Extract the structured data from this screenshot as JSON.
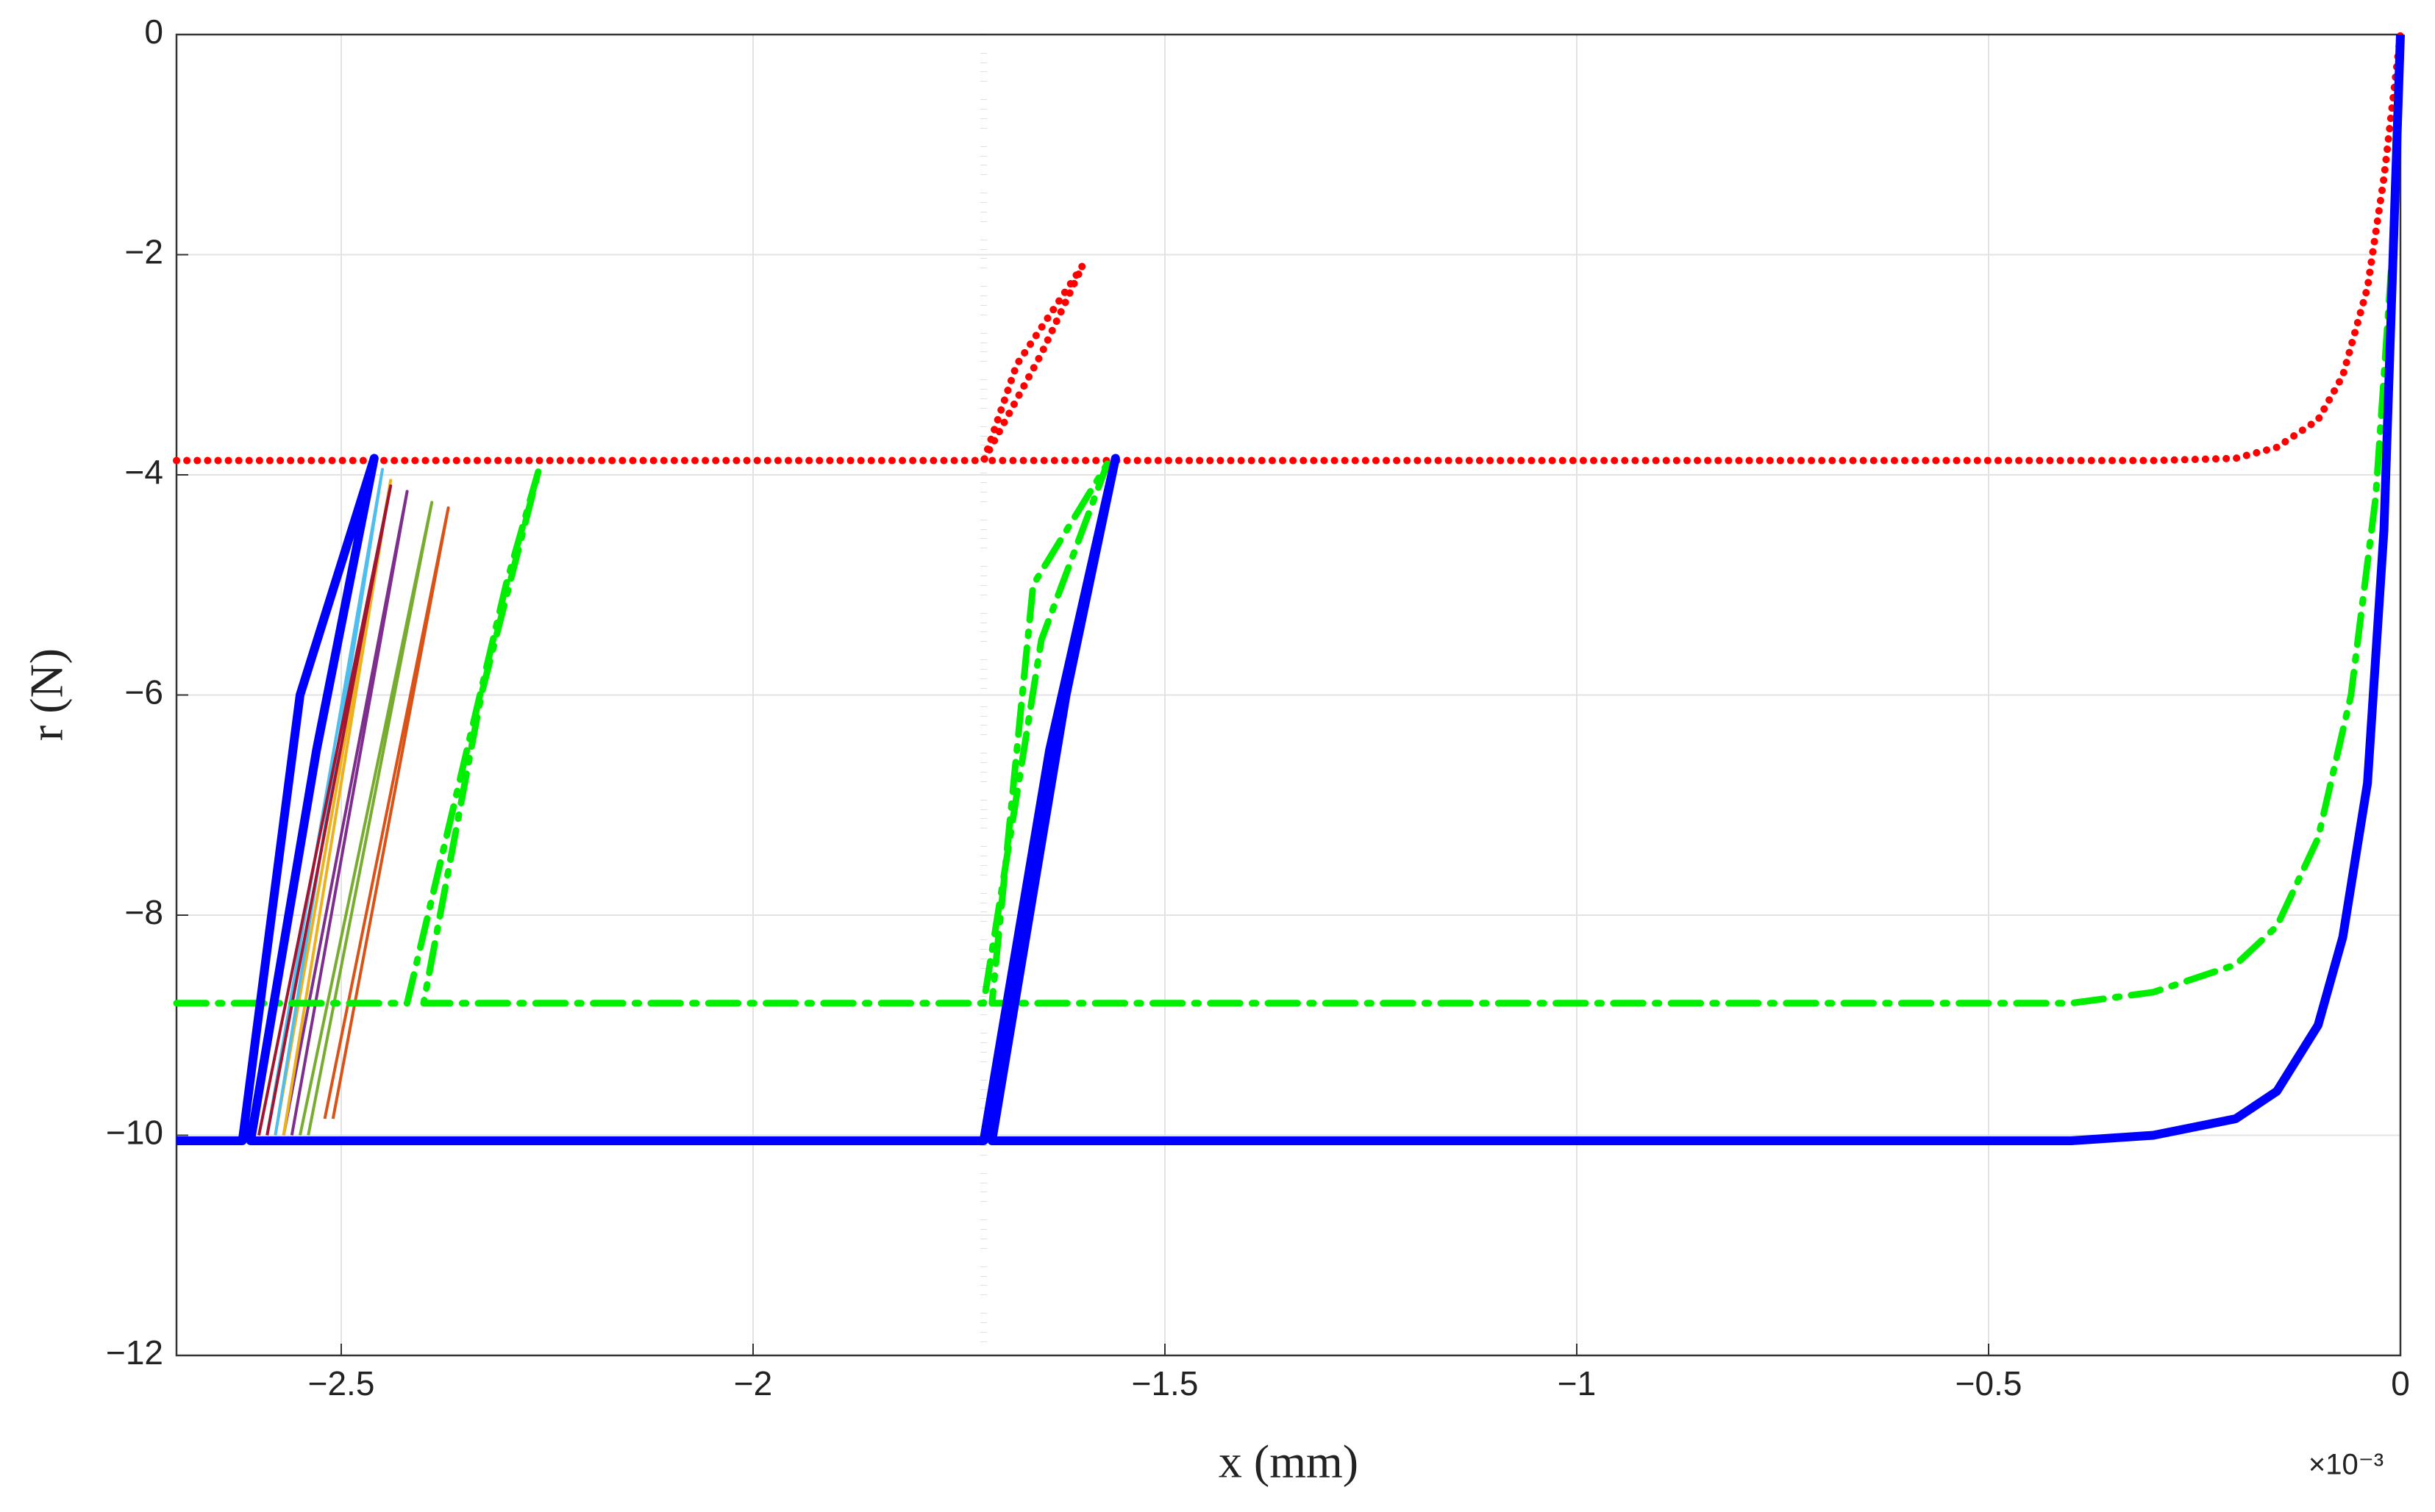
{
  "chart_data": {
    "type": "line",
    "xlabel": "x (mm)",
    "ylabel": "r (N)",
    "x_multiplier": "×10⁻³",
    "xlim": [
      -2.7,
      0
    ],
    "ylim": [
      -12,
      0
    ],
    "xticks": [
      {
        "value": -2.5,
        "label": "−2.5"
      },
      {
        "value": -2,
        "label": "−2"
      },
      {
        "value": -1.5,
        "label": "−1.5"
      },
      {
        "value": -1,
        "label": "−1"
      },
      {
        "value": -0.5,
        "label": "−0.5"
      },
      0
    ],
    "yticks": [
      {
        "value": -12,
        "label": "−12"
      },
      {
        "value": -10,
        "label": "−10"
      },
      {
        "value": -8,
        "label": "−8"
      },
      {
        "value": -6,
        "label": "−6"
      },
      {
        "value": -4,
        "label": "−4"
      },
      {
        "value": -2,
        "label": "−2"
      },
      0
    ],
    "grid": true,
    "vline": {
      "x": -1.72,
      "color": "#000000",
      "style": "dotted"
    },
    "series": [
      {
        "color": "#d95319",
        "style": "solid",
        "width": 4,
        "x": [
          -2.52,
          -2.37,
          -2.51
        ],
        "values": [
          -9.85,
          -4.3,
          -9.85
        ]
      },
      {
        "color": "#77ac30",
        "style": "solid",
        "width": 4,
        "x": [
          -2.55,
          -2.39,
          -2.54
        ],
        "values": [
          -10,
          -4.25,
          -10
        ]
      },
      {
        "color": "#7e2f8e",
        "style": "solid",
        "width": 4,
        "x": [
          -2.57,
          -2.42,
          -2.56
        ],
        "values": [
          -10,
          -4.15,
          -10
        ]
      },
      {
        "color": "#edb120",
        "style": "solid",
        "width": 4,
        "x": [
          -2.58,
          -2.44,
          -2.57
        ],
        "values": [
          -10,
          -4.05,
          -10
        ]
      },
      {
        "color": "#4dbeee",
        "style": "solid",
        "width": 4,
        "x": [
          -2.59,
          -2.45,
          -2.58
        ],
        "values": [
          -10,
          -3.95,
          -10
        ]
      },
      {
        "color": "#a2142f",
        "style": "solid",
        "width": 4,
        "x": [
          -2.6,
          -2.44,
          -2.59
        ],
        "values": [
          -10,
          -4.1,
          -10
        ]
      },
      {
        "color": "#ff0000",
        "style": "dotted",
        "width": 10,
        "x": [
          -2.7,
          -1.72,
          -1.68,
          -1.6,
          -1.65,
          -1.72,
          -0.3,
          -0.2,
          -0.15,
          -0.1,
          -0.07,
          -0.04,
          -0.02,
          0
        ],
        "values": [
          -3.87,
          -3.87,
          -3.0,
          -2.1,
          -2.9,
          -3.87,
          -3.87,
          -3.85,
          -3.75,
          -3.5,
          -3.1,
          -2.3,
          -1.3,
          0
        ]
      },
      {
        "color": "#00ee00",
        "style": "dashdot",
        "width": 9,
        "x": [
          -2.7,
          -2.42,
          -2.3,
          -2.26,
          -2.33,
          -2.4,
          -1.72,
          -1.65,
          -1.57,
          -1.66,
          -1.71,
          -0.4,
          -0.3,
          -0.2,
          -0.15,
          -0.1,
          -0.06,
          -0.03,
          -0.01,
          0
        ],
        "values": [
          -8.8,
          -8.8,
          -5.0,
          -3.95,
          -6.0,
          -8.8,
          -8.8,
          -5.5,
          -3.9,
          -5.0,
          -8.8,
          -8.8,
          -8.7,
          -8.45,
          -8.1,
          -7.3,
          -6.0,
          -4.2,
          -2.0,
          0
        ]
      },
      {
        "color": "#0000ff",
        "style": "solid",
        "width": 12,
        "x": [
          -2.7,
          -2.62,
          -2.55,
          -2.46,
          -2.53,
          -2.61,
          -1.72,
          -1.64,
          -1.56,
          -1.62,
          -1.71,
          -0.4,
          -0.3,
          -0.2,
          -0.15,
          -0.1,
          -0.07,
          -0.04,
          -0.02,
          0
        ],
        "values": [
          -10.05,
          -10.05,
          -6.0,
          -3.85,
          -6.5,
          -10.05,
          -10.05,
          -6.5,
          -3.85,
          -6.0,
          -10.05,
          -10.05,
          -10.0,
          -9.85,
          -9.6,
          -9.0,
          -8.2,
          -6.8,
          -4.5,
          0
        ]
      }
    ]
  }
}
